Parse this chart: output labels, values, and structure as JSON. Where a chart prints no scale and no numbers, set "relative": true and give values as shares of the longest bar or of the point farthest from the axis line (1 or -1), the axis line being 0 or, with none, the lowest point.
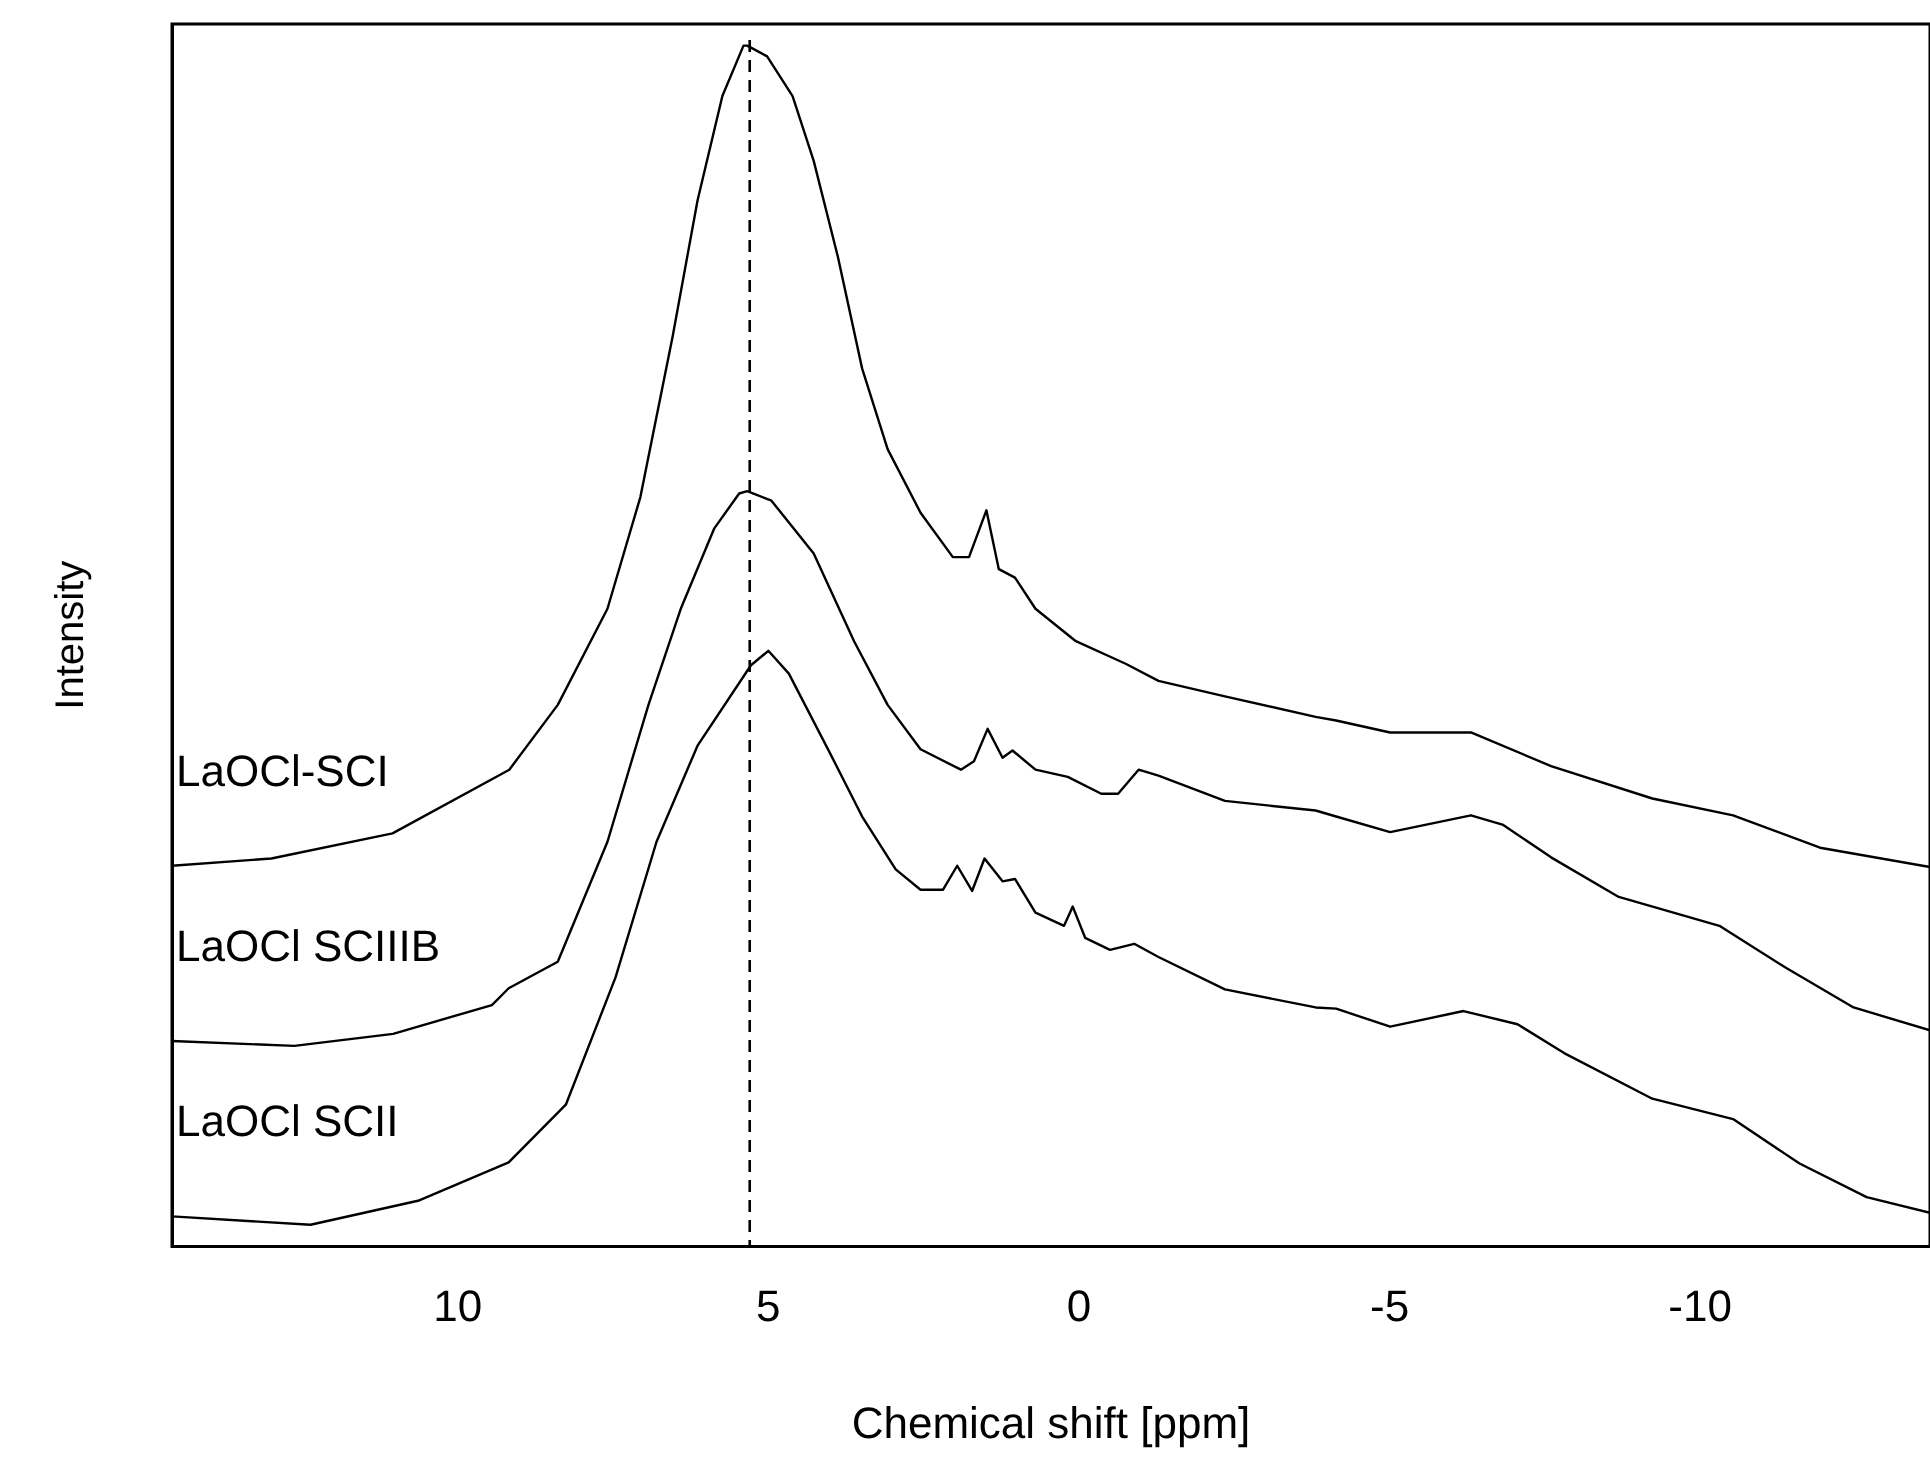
{
  "chart_data": {
    "type": "line",
    "xlabel": "Chemical shift [ppm]",
    "ylabel": "Intensity",
    "relative": true,
    "xlim": [
      14.6,
      -13.7
    ],
    "xticks": [
      10,
      5,
      0,
      -5,
      -10
    ],
    "grid": false,
    "legend": false,
    "marker": "none",
    "line_style": "solid",
    "ref_lines": [
      {
        "axis": "x",
        "value": 5.3,
        "label": null,
        "color": "#000000",
        "line_style": "dashed"
      }
    ],
    "series": [
      {
        "name": "LaOCl-SCI",
        "color": "#000000",
        "x": [
          14.6,
          13.0,
          11.05,
          9.17,
          8.39,
          7.59,
          7.06,
          6.54,
          6.14,
          5.74,
          5.4,
          5.34,
          5.02,
          4.61,
          4.27,
          3.88,
          3.49,
          3.08,
          2.55,
          2.03,
          1.77,
          1.49,
          1.29,
          1.03,
          0.7,
          0.05,
          -0.76,
          -1.28,
          -2.35,
          -3.81,
          -4.14,
          -5.01,
          -6.31,
          -7.6,
          -9.23,
          -10.53,
          -11.93,
          -13.7
        ],
        "values": [
          0.317,
          0.323,
          0.344,
          0.397,
          0.451,
          0.531,
          0.624,
          0.758,
          0.871,
          0.958,
          1.0,
          1.0,
          0.991,
          0.958,
          0.904,
          0.824,
          0.731,
          0.664,
          0.611,
          0.574,
          0.574,
          0.613,
          0.564,
          0.557,
          0.531,
          0.504,
          0.485,
          0.471,
          0.458,
          0.441,
          0.438,
          0.428,
          0.428,
          0.4,
          0.373,
          0.359,
          0.332,
          0.316
        ]
      },
      {
        "name": "LaOCl SCIIIB",
        "color": "#000000",
        "x": [
          14.6,
          12.63,
          11.04,
          9.45,
          9.18,
          8.39,
          7.59,
          6.93,
          6.41,
          5.87,
          5.47,
          5.34,
          4.95,
          4.27,
          3.62,
          3.08,
          2.55,
          1.9,
          1.69,
          1.47,
          1.23,
          1.07,
          0.7,
          0.18,
          -0.36,
          -0.63,
          -0.96,
          -1.28,
          -2.35,
          -3.81,
          -4.14,
          -5.01,
          -6.31,
          -6.83,
          -7.6,
          -8.69,
          -10.31,
          -11.38,
          -12.47,
          -13.7
        ],
        "values": [
          0.171,
          0.167,
          0.177,
          0.201,
          0.215,
          0.237,
          0.337,
          0.451,
          0.531,
          0.598,
          0.627,
          0.629,
          0.621,
          0.577,
          0.504,
          0.451,
          0.414,
          0.397,
          0.404,
          0.431,
          0.407,
          0.413,
          0.397,
          0.391,
          0.377,
          0.377,
          0.397,
          0.392,
          0.371,
          0.363,
          0.358,
          0.345,
          0.359,
          0.351,
          0.324,
          0.291,
          0.267,
          0.232,
          0.199,
          0.18
        ]
      },
      {
        "name": "LaOCl SCII",
        "color": "#000000",
        "x": [
          14.6,
          12.37,
          10.64,
          9.18,
          8.26,
          7.46,
          6.8,
          6.14,
          5.28,
          5.0,
          4.67,
          4.01,
          3.49,
          2.95,
          2.55,
          2.19,
          1.96,
          1.72,
          1.52,
          1.23,
          1.03,
          0.7,
          0.24,
          0.1,
          -0.1,
          -0.5,
          -0.89,
          -1.28,
          -2.35,
          -3.81,
          -4.14,
          -5.01,
          -6.19,
          -7.06,
          -7.81,
          -9.23,
          -10.53,
          -11.6,
          -12.68,
          -13.7
        ],
        "values": [
          0.025,
          0.018,
          0.038,
          0.07,
          0.118,
          0.224,
          0.337,
          0.417,
          0.484,
          0.496,
          0.477,
          0.411,
          0.358,
          0.314,
          0.297,
          0.297,
          0.317,
          0.296,
          0.323,
          0.304,
          0.306,
          0.278,
          0.267,
          0.283,
          0.257,
          0.247,
          0.252,
          0.241,
          0.214,
          0.199,
          0.198,
          0.183,
          0.196,
          0.185,
          0.161,
          0.123,
          0.106,
          0.069,
          0.041,
          0.028
        ]
      }
    ]
  }
}
